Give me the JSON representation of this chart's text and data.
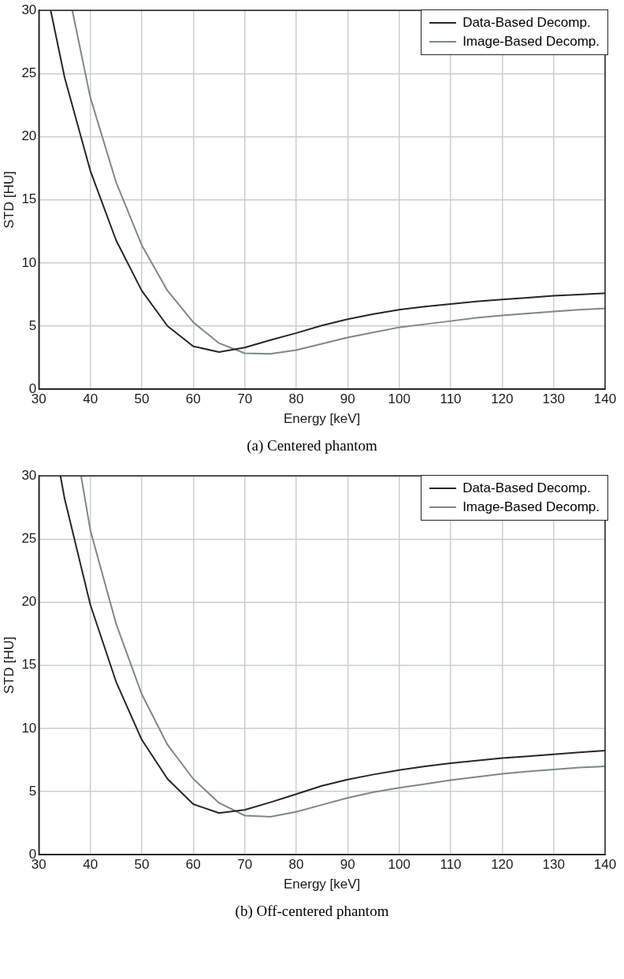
{
  "chart_data": [
    {
      "type": "line",
      "xlabel": "Energy [keV]",
      "ylabel": "STD [HU]",
      "xlim": [
        30,
        140
      ],
      "ylim": [
        0,
        30
      ],
      "xticks": [
        30,
        40,
        50,
        60,
        70,
        80,
        90,
        100,
        110,
        120,
        130,
        140
      ],
      "yticks": [
        0,
        5,
        10,
        15,
        20,
        25,
        30
      ],
      "grid": true,
      "legend": "top right",
      "marker": "none",
      "line_style": "solid",
      "annotations": [
        "(a) Centered phantom"
      ],
      "series": [
        {
          "name": "Data-Based Decomp.",
          "color": "#262626",
          "x": [
            32.3,
            35,
            40,
            45,
            50,
            55,
            60,
            65,
            70,
            75,
            80,
            85,
            90,
            95,
            100,
            105,
            110,
            115,
            120,
            125,
            130,
            135,
            140
          ],
          "values": [
            30,
            24.7,
            17.3,
            11.8,
            7.8,
            5.0,
            3.4,
            2.95,
            3.3,
            3.9,
            4.45,
            5.05,
            5.55,
            5.95,
            6.3,
            6.55,
            6.75,
            6.95,
            7.1,
            7.25,
            7.4,
            7.5,
            7.6
          ]
        },
        {
          "name": "Image-Based Decomp.",
          "color": "#7f8787",
          "x": [
            36.5,
            40,
            45,
            50,
            55,
            60,
            65,
            70,
            75,
            80,
            85,
            90,
            95,
            100,
            105,
            110,
            115,
            120,
            125,
            130,
            135,
            140
          ],
          "values": [
            30,
            23.1,
            16.4,
            11.4,
            7.8,
            5.3,
            3.65,
            2.85,
            2.8,
            3.1,
            3.6,
            4.1,
            4.5,
            4.9,
            5.15,
            5.4,
            5.65,
            5.85,
            6.0,
            6.15,
            6.3,
            6.4
          ]
        }
      ]
    },
    {
      "type": "line",
      "xlabel": "Energy [keV]",
      "ylabel": "STD [HU]",
      "xlim": [
        30,
        140
      ],
      "ylim": [
        0,
        30
      ],
      "xticks": [
        30,
        40,
        50,
        60,
        70,
        80,
        90,
        100,
        110,
        120,
        130,
        140
      ],
      "yticks": [
        0,
        5,
        10,
        15,
        20,
        25,
        30
      ],
      "grid": true,
      "legend": "top right",
      "marker": "none",
      "line_style": "solid",
      "annotations": [
        "(b) Off-centered phantom"
      ],
      "series": [
        {
          "name": "Data-Based Decomp.",
          "color": "#262626",
          "x": [
            34.2,
            35,
            40,
            45,
            50,
            55,
            60,
            65,
            70,
            75,
            80,
            85,
            90,
            95,
            100,
            105,
            110,
            115,
            120,
            125,
            130,
            135,
            140
          ],
          "values": [
            30,
            28.2,
            19.8,
            13.7,
            9.1,
            6.0,
            4.0,
            3.3,
            3.55,
            4.15,
            4.8,
            5.45,
            5.95,
            6.35,
            6.7,
            7.0,
            7.25,
            7.45,
            7.65,
            7.8,
            7.95,
            8.1,
            8.24
          ]
        },
        {
          "name": "Image-Based Decomp.",
          "color": "#7f8787",
          "x": [
            38.2,
            40,
            45,
            50,
            55,
            60,
            65,
            70,
            75,
            80,
            85,
            90,
            95,
            100,
            105,
            110,
            115,
            120,
            125,
            130,
            135,
            140
          ],
          "values": [
            30,
            25.7,
            18.3,
            12.7,
            8.7,
            6.0,
            4.1,
            3.1,
            3.0,
            3.4,
            3.95,
            4.5,
            4.95,
            5.3,
            5.6,
            5.9,
            6.15,
            6.4,
            6.6,
            6.75,
            6.9,
            7.0
          ]
        }
      ]
    }
  ]
}
